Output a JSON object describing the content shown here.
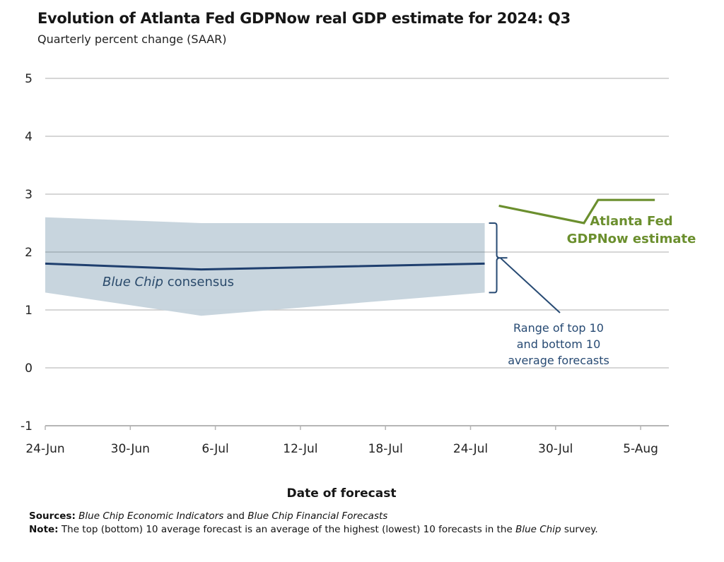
{
  "title": "Evolution of Atlanta Fed GDPNow real GDP estimate for 2024: Q3",
  "subtitle": "Quarterly percent change (SAAR)",
  "colors": {
    "band": "#c5d3dc",
    "consensus_line": "#1f3f6e",
    "gdpnow_line": "#6b8f2e",
    "grid": "#c8c8c8",
    "range_annotation": "#274a73"
  },
  "chart_data": {
    "type": "line",
    "title": "Evolution of Atlanta Fed GDPNow real GDP estimate for 2024: Q3",
    "subtitle": "Quarterly percent change (SAAR)",
    "xlabel": "Date of forecast",
    "ylabel": "",
    "ylim": [
      -1,
      5
    ],
    "yticks": [
      "5",
      "4",
      "3",
      "2",
      "1",
      "0",
      "-1"
    ],
    "ytick_values": [
      5,
      4,
      3,
      2,
      1,
      0,
      -1
    ],
    "xticks": [
      "24-Jun",
      "30-Jun",
      "6-Jul",
      "12-Jul",
      "18-Jul",
      "24-Jul",
      "30-Jul",
      "5-Aug"
    ],
    "xtick_days": [
      0,
      6,
      12,
      18,
      24,
      30,
      36,
      42
    ],
    "x_day0": "24-Jun",
    "xlim_days": [
      0,
      44
    ],
    "grid": true,
    "series": [
      {
        "name": "Blue Chip consensus",
        "kind": "line",
        "points": [
          {
            "date": "24-Jun",
            "day": 0,
            "value": 1.8
          },
          {
            "date": "5-Jul",
            "day": 11,
            "value": 1.7
          },
          {
            "date": "25-Jul",
            "day": 31,
            "value": 1.8
          }
        ]
      },
      {
        "name": "Range of top 10 and bottom 10 average forecasts",
        "kind": "band",
        "points": [
          {
            "date": "24-Jun",
            "day": 0,
            "low": 1.3,
            "high": 2.6
          },
          {
            "date": "5-Jul",
            "day": 11,
            "low": 0.9,
            "high": 2.5
          },
          {
            "date": "25-Jul",
            "day": 31,
            "low": 1.3,
            "high": 2.5
          }
        ]
      },
      {
        "name": "Atlanta Fed GDPNow estimate",
        "kind": "line",
        "points": [
          {
            "date": "26-Jul",
            "day": 32,
            "value": 2.8
          },
          {
            "date": "1-Aug",
            "day": 38,
            "value": 2.5
          },
          {
            "date": "2-Aug",
            "day": 39,
            "value": 2.9
          },
          {
            "date": "6-Aug",
            "day": 43,
            "value": 2.9
          }
        ]
      }
    ],
    "annotations": {
      "consensus_italic": "Blue Chip",
      "consensus_rest": " consensus",
      "range_lines": [
        "Range of top 10",
        "and bottom 10",
        "average forecasts"
      ],
      "gdpnow_lines": [
        "Atlanta Fed",
        "GDPNow estimate"
      ]
    }
  },
  "footer": {
    "sources_label": "Sources:",
    "sources_italic_1": "Blue Chip Economic Indicators",
    "sources_and": " and ",
    "sources_italic_2": "Blue Chip Financial Forecasts",
    "note_label": "Note:",
    "note_text": " The top (bottom) 10 average forecast is an average of the highest (lowest) 10 forecasts in the ",
    "note_italic": "Blue Chip",
    "note_end": " survey."
  }
}
